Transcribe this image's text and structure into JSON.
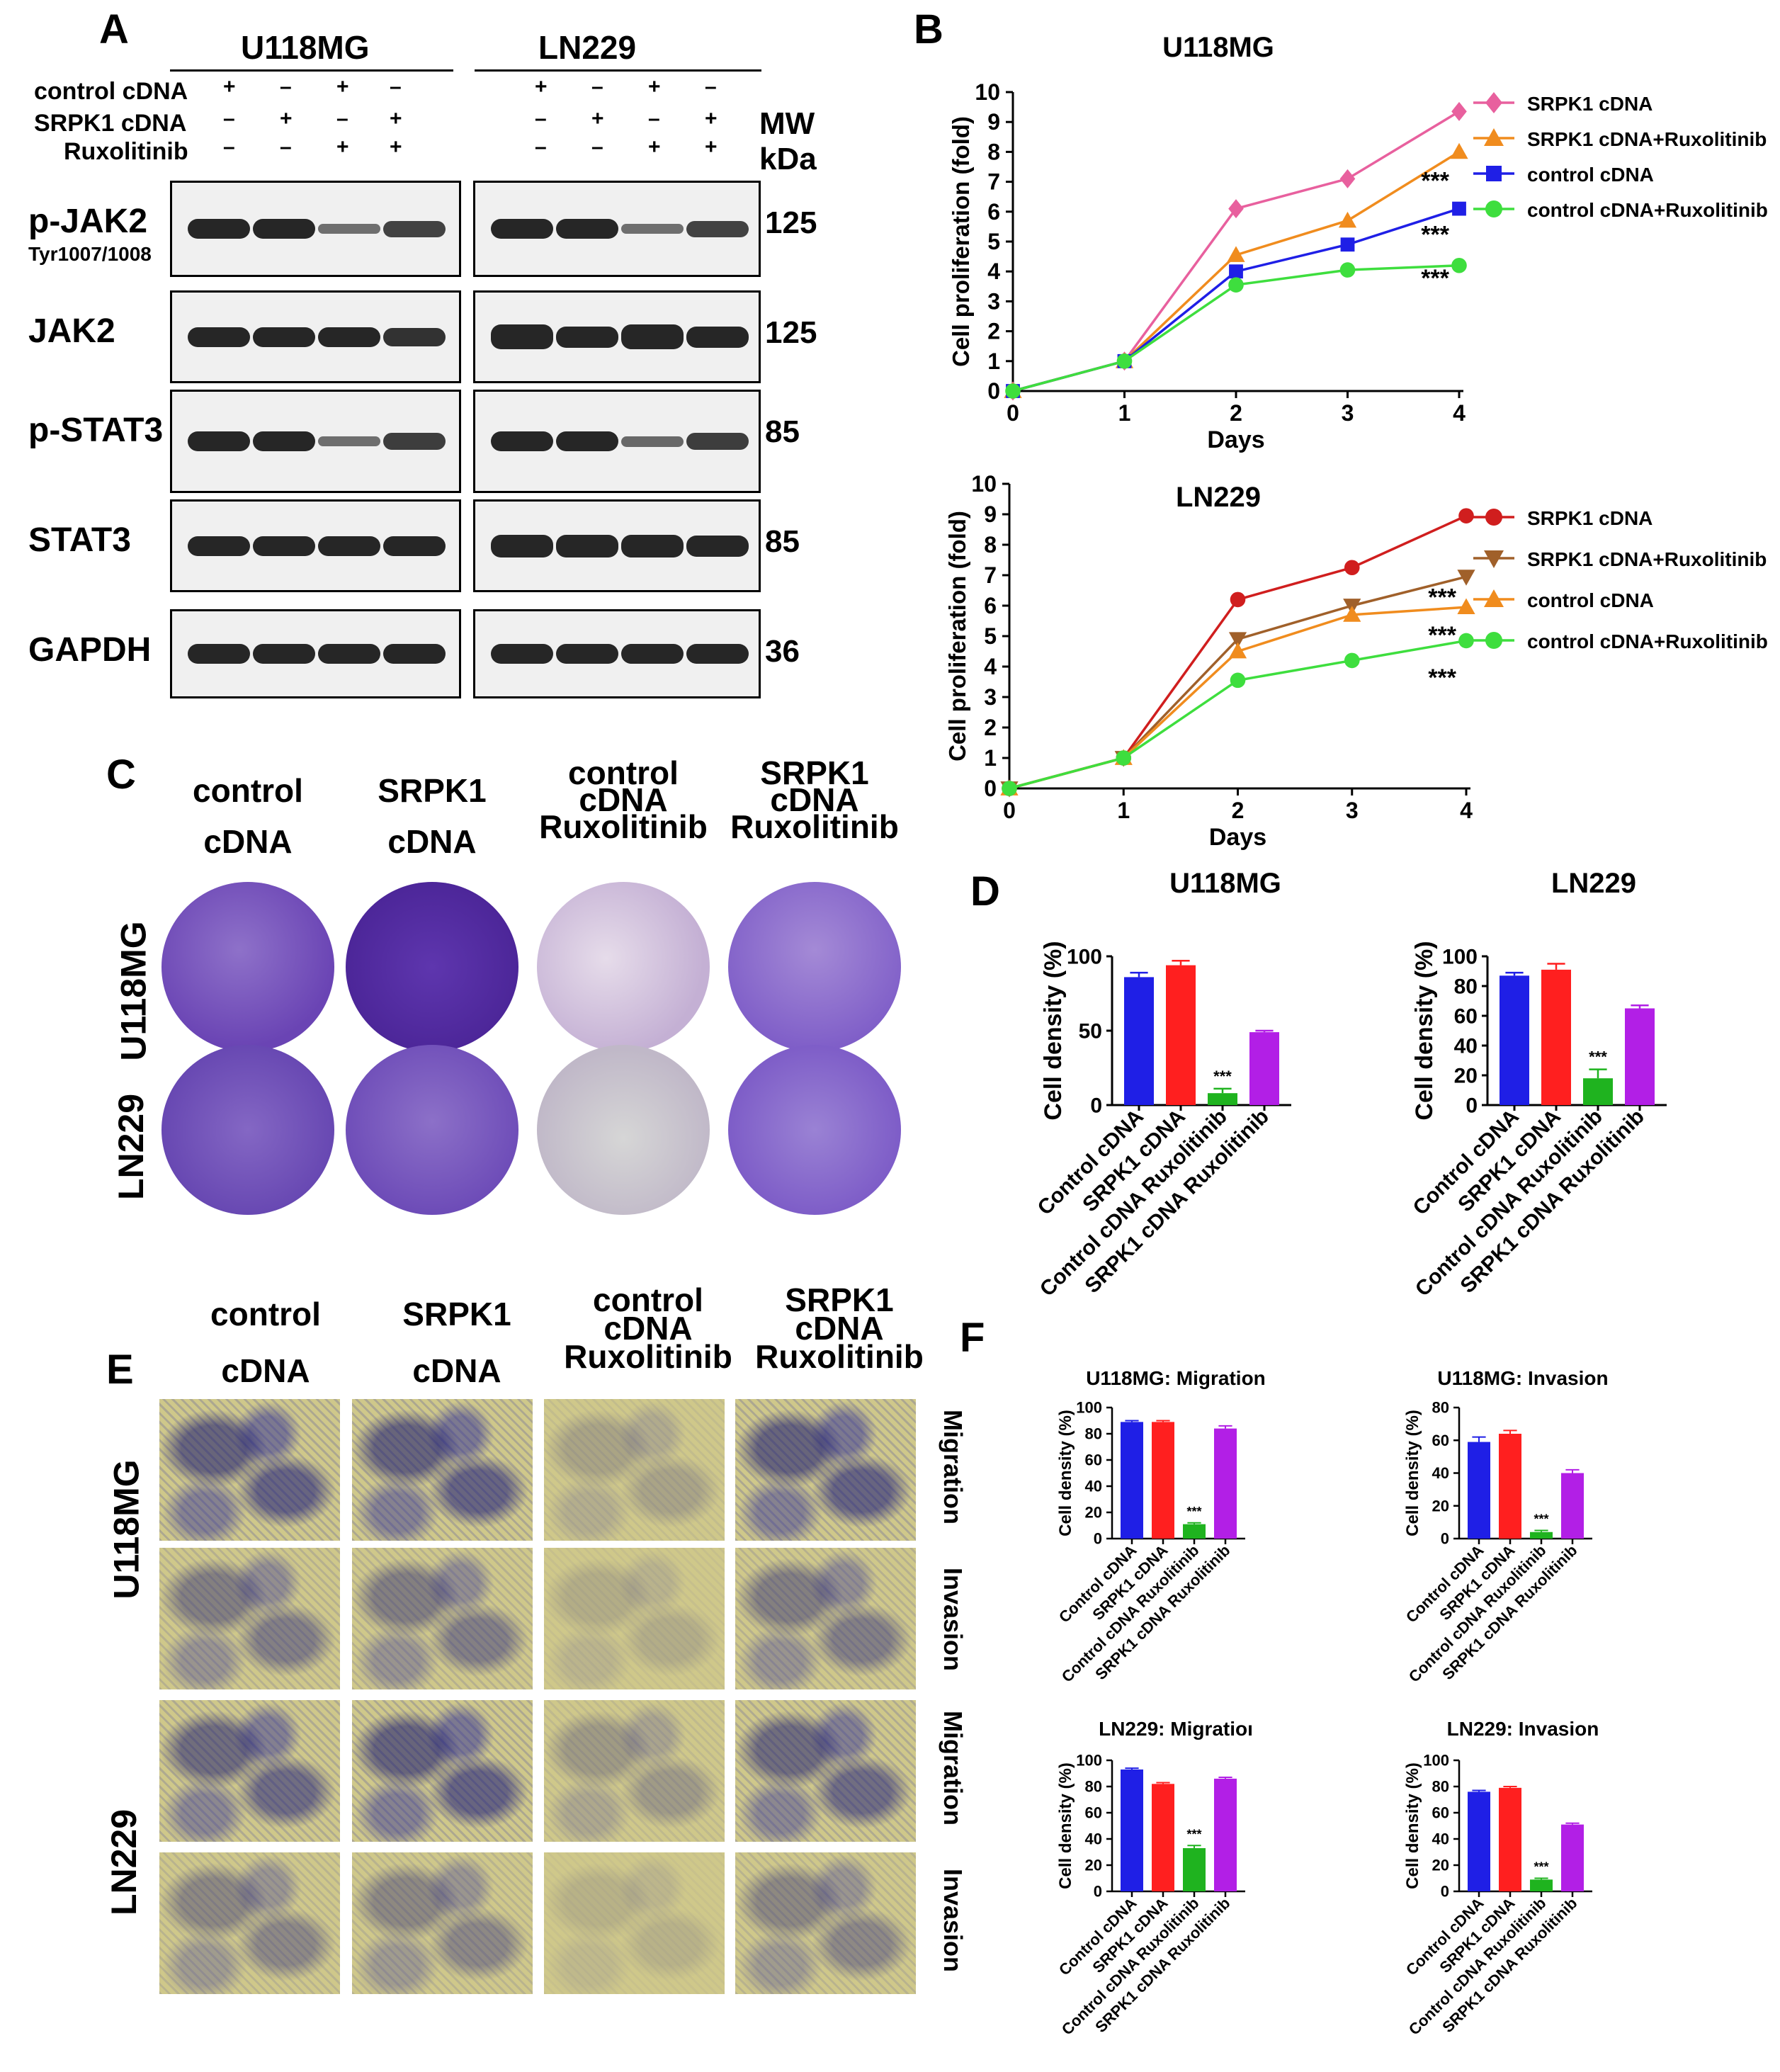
{
  "panels": {
    "A": "A",
    "B": "B",
    "C": "C",
    "D": "D",
    "E": "E",
    "F": "F"
  },
  "blot": {
    "cell_lines": [
      "U118MG",
      "LN229"
    ],
    "conditions": [
      {
        "label": "control cDNA",
        "signs": [
          "+",
          "–",
          "+",
          "–"
        ]
      },
      {
        "label": "SRPK1 cDNA",
        "signs": [
          "–",
          "+",
          "–",
          "+"
        ]
      },
      {
        "label": "Ruxolitinib",
        "signs": [
          "–",
          "–",
          "+",
          "+"
        ]
      }
    ],
    "mw_label": "MW",
    "kda_label": "kDa",
    "proteins": [
      {
        "name": "p-JAK2",
        "sub": "Tyr1007/1008",
        "mw": "125"
      },
      {
        "name": "JAK2",
        "sub": "",
        "mw": "125"
      },
      {
        "name": "p-STAT3",
        "sub": "",
        "mw": "85"
      },
      {
        "name": "STAT3",
        "sub": "",
        "mw": "85"
      },
      {
        "name": "GAPDH",
        "sub": "",
        "mw": "36"
      }
    ]
  },
  "col_headers_C": [
    {
      "l1": "control",
      "l2": "cDNA"
    },
    {
      "l1": "SRPK1",
      "l2": "cDNA"
    },
    {
      "l1": "control",
      "l2": "cDNA",
      "l3": "Ruxolitinib"
    },
    {
      "l1": "SRPK1",
      "l2": "cDNA",
      "l3": "Ruxolitinib"
    }
  ],
  "row_labels": [
    "U118MG",
    "LN229"
  ],
  "e_side_labels": [
    "Migration",
    "Invasion",
    "Migration",
    "Invasion"
  ],
  "colors": {
    "blue": "#1f1fe6",
    "red": "#ff1f1f",
    "green": "#1fb31f",
    "purple": "#b21fe6",
    "pink": "#e8609e",
    "orange": "#f08c1e",
    "lime": "#3ede3e",
    "darkred": "#d01e1e",
    "brown": "#a0602a"
  },
  "chart_data": [
    {
      "id": "B-U118MG",
      "type": "line",
      "title": "U118MG",
      "xlabel": "Days",
      "ylabel": "Cell proliferation (fold)",
      "x": [
        0,
        1,
        2,
        3,
        4
      ],
      "ylim": [
        0,
        10
      ],
      "grid": false,
      "legend": "top-right",
      "series": [
        {
          "name": "SRPK1 cDNA",
          "values": [
            0,
            1,
            6.1,
            7.1,
            9.35
          ],
          "color": "#e8609e",
          "marker": "diamond"
        },
        {
          "name": "SRPK1 cDNA+Ruxolitinib",
          "values": [
            0,
            1,
            4.55,
            5.7,
            8
          ],
          "color": "#f08c1e",
          "marker": "triangle"
        },
        {
          "name": "control cDNA",
          "values": [
            0,
            1,
            4,
            4.9,
            6.1
          ],
          "color": "#1f1fe6",
          "marker": "square"
        },
        {
          "name": "control cDNA+Ruxolitinib",
          "values": [
            0,
            1,
            3.55,
            4.05,
            4.2
          ],
          "color": "#3ede3e",
          "marker": "circle"
        }
      ],
      "annotations": [
        {
          "text": "***",
          "x": 4,
          "y": 7.0
        },
        {
          "text": "***",
          "x": 4,
          "y": 5.2
        },
        {
          "text": "***",
          "x": 4,
          "y": 3.75
        }
      ]
    },
    {
      "id": "B-LN229",
      "type": "line",
      "title": "LN229",
      "xlabel": "Days",
      "ylabel": "Cell proliferation (fold)",
      "x": [
        0,
        1,
        2,
        3,
        4
      ],
      "ylim": [
        0,
        10
      ],
      "grid": false,
      "legend": "top-right",
      "series": [
        {
          "name": "SRPK1 cDNA",
          "values": [
            0,
            1,
            6.2,
            7.25,
            8.95
          ],
          "color": "#d01e1e",
          "marker": "circle"
        },
        {
          "name": "SRPK1 cDNA+Ruxolitinib",
          "values": [
            0,
            1,
            4.9,
            6.0,
            6.95
          ],
          "color": "#a0602a",
          "marker": "triangle-down"
        },
        {
          "name": "control cDNA",
          "values": [
            0,
            1,
            4.5,
            5.7,
            5.95
          ],
          "color": "#f08c1e",
          "marker": "triangle"
        },
        {
          "name": "control cDNA+Ruxolitinib",
          "values": [
            0,
            1,
            3.55,
            4.2,
            4.85
          ],
          "color": "#3ede3e",
          "marker": "circle"
        }
      ],
      "annotations": [
        {
          "text": "***",
          "x": 4,
          "y": 6.25
        },
        {
          "text": "***",
          "x": 4,
          "y": 5.0
        },
        {
          "text": "***",
          "x": 4,
          "y": 3.6
        }
      ]
    },
    {
      "id": "D-U118MG",
      "type": "bar",
      "title": "U118MG",
      "ylabel": "Cell density (%)",
      "categories": [
        "Control cDNA",
        "SRPK1 cDNA",
        "Control cDNA Ruxolitinib",
        "SRPK1 cDNA Ruxolitinib"
      ],
      "values": [
        86,
        94,
        8,
        49
      ],
      "errors": [
        3,
        3,
        3,
        1
      ],
      "ylim": [
        0,
        100
      ],
      "ticks": [
        0,
        50,
        100
      ],
      "colors": [
        "#1f1fe6",
        "#ff1f1f",
        "#1fb31f",
        "#b21fe6"
      ],
      "star_index": 2,
      "star": "***"
    },
    {
      "id": "D-LN229",
      "type": "bar",
      "title": "LN229",
      "ylabel": "Cell density (%)",
      "categories": [
        "Control cDNA",
        "SRPK1 cDNA",
        "Control cDNA Ruxolitinib",
        "SRPK1 cDNA Ruxolitinib"
      ],
      "values": [
        87,
        91,
        18,
        65
      ],
      "errors": [
        2,
        4,
        6,
        2
      ],
      "ylim": [
        0,
        100
      ],
      "ticks": [
        0,
        20,
        40,
        60,
        80,
        100
      ],
      "colors": [
        "#1f1fe6",
        "#ff1f1f",
        "#1fb31f",
        "#b21fe6"
      ],
      "star_index": 2,
      "star": "***"
    },
    {
      "id": "F-U118MG-Migration",
      "type": "bar",
      "title": "U118MG: Migration",
      "ylabel": "Cell density (%)",
      "categories": [
        "Control cDNA",
        "SRPK1 cDNA",
        "Control cDNA Ruxolitinib",
        "SRPK1 cDNA Ruxolitinib"
      ],
      "values": [
        89,
        89,
        11,
        84
      ],
      "errors": [
        1,
        1,
        1,
        2
      ],
      "ylim": [
        0,
        100
      ],
      "ticks": [
        0,
        20,
        40,
        60,
        80,
        100
      ],
      "colors": [
        "#1f1fe6",
        "#ff1f1f",
        "#1fb31f",
        "#b21fe6"
      ],
      "star_index": 2,
      "star": "***"
    },
    {
      "id": "F-U118MG-Invasion",
      "type": "bar",
      "title": "U118MG: Invasion",
      "ylabel": "Cell density (%)",
      "categories": [
        "Control cDNA",
        "SRPK1 cDNA",
        "Control cDNA Ruxolitinib",
        "SRPK1 cDNA Ruxolitinib"
      ],
      "values": [
        59,
        64,
        4,
        40
      ],
      "errors": [
        3,
        2,
        1,
        2
      ],
      "ylim": [
        0,
        80
      ],
      "ticks": [
        0,
        20,
        40,
        60,
        80
      ],
      "colors": [
        "#1f1fe6",
        "#ff1f1f",
        "#1fb31f",
        "#b21fe6"
      ],
      "star_index": 2,
      "star": "***"
    },
    {
      "id": "F-LN229-Migration",
      "type": "bar",
      "title": "LN229: Migratioı",
      "ylabel": "Cell density (%)",
      "categories": [
        "Control cDNA",
        "SRPK1 cDNA",
        "Control cDNA Ruxolitinib",
        "SRPK1 cDNA Ruxolitinib"
      ],
      "values": [
        93,
        82,
        33,
        86
      ],
      "errors": [
        1,
        1,
        2,
        1
      ],
      "ylim": [
        0,
        100
      ],
      "ticks": [
        0,
        20,
        40,
        60,
        80,
        100
      ],
      "colors": [
        "#1f1fe6",
        "#ff1f1f",
        "#1fb31f",
        "#b21fe6"
      ],
      "star_index": 2,
      "star": "***"
    },
    {
      "id": "F-LN229-Invasion",
      "type": "bar",
      "title": "LN229: Invasion",
      "ylabel": "Cell density (%)",
      "categories": [
        "Control cDNA",
        "SRPK1 cDNA",
        "Control cDNA Ruxolitinib",
        "SRPK1 cDNA Ruxolitinib"
      ],
      "values": [
        76,
        79,
        9,
        51
      ],
      "errors": [
        1,
        1,
        1,
        1
      ],
      "ylim": [
        0,
        100
      ],
      "ticks": [
        0,
        20,
        40,
        60,
        80,
        100
      ],
      "colors": [
        "#1f1fe6",
        "#ff1f1f",
        "#1fb31f",
        "#b21fe6"
      ],
      "star_index": 2,
      "star": "***"
    }
  ]
}
